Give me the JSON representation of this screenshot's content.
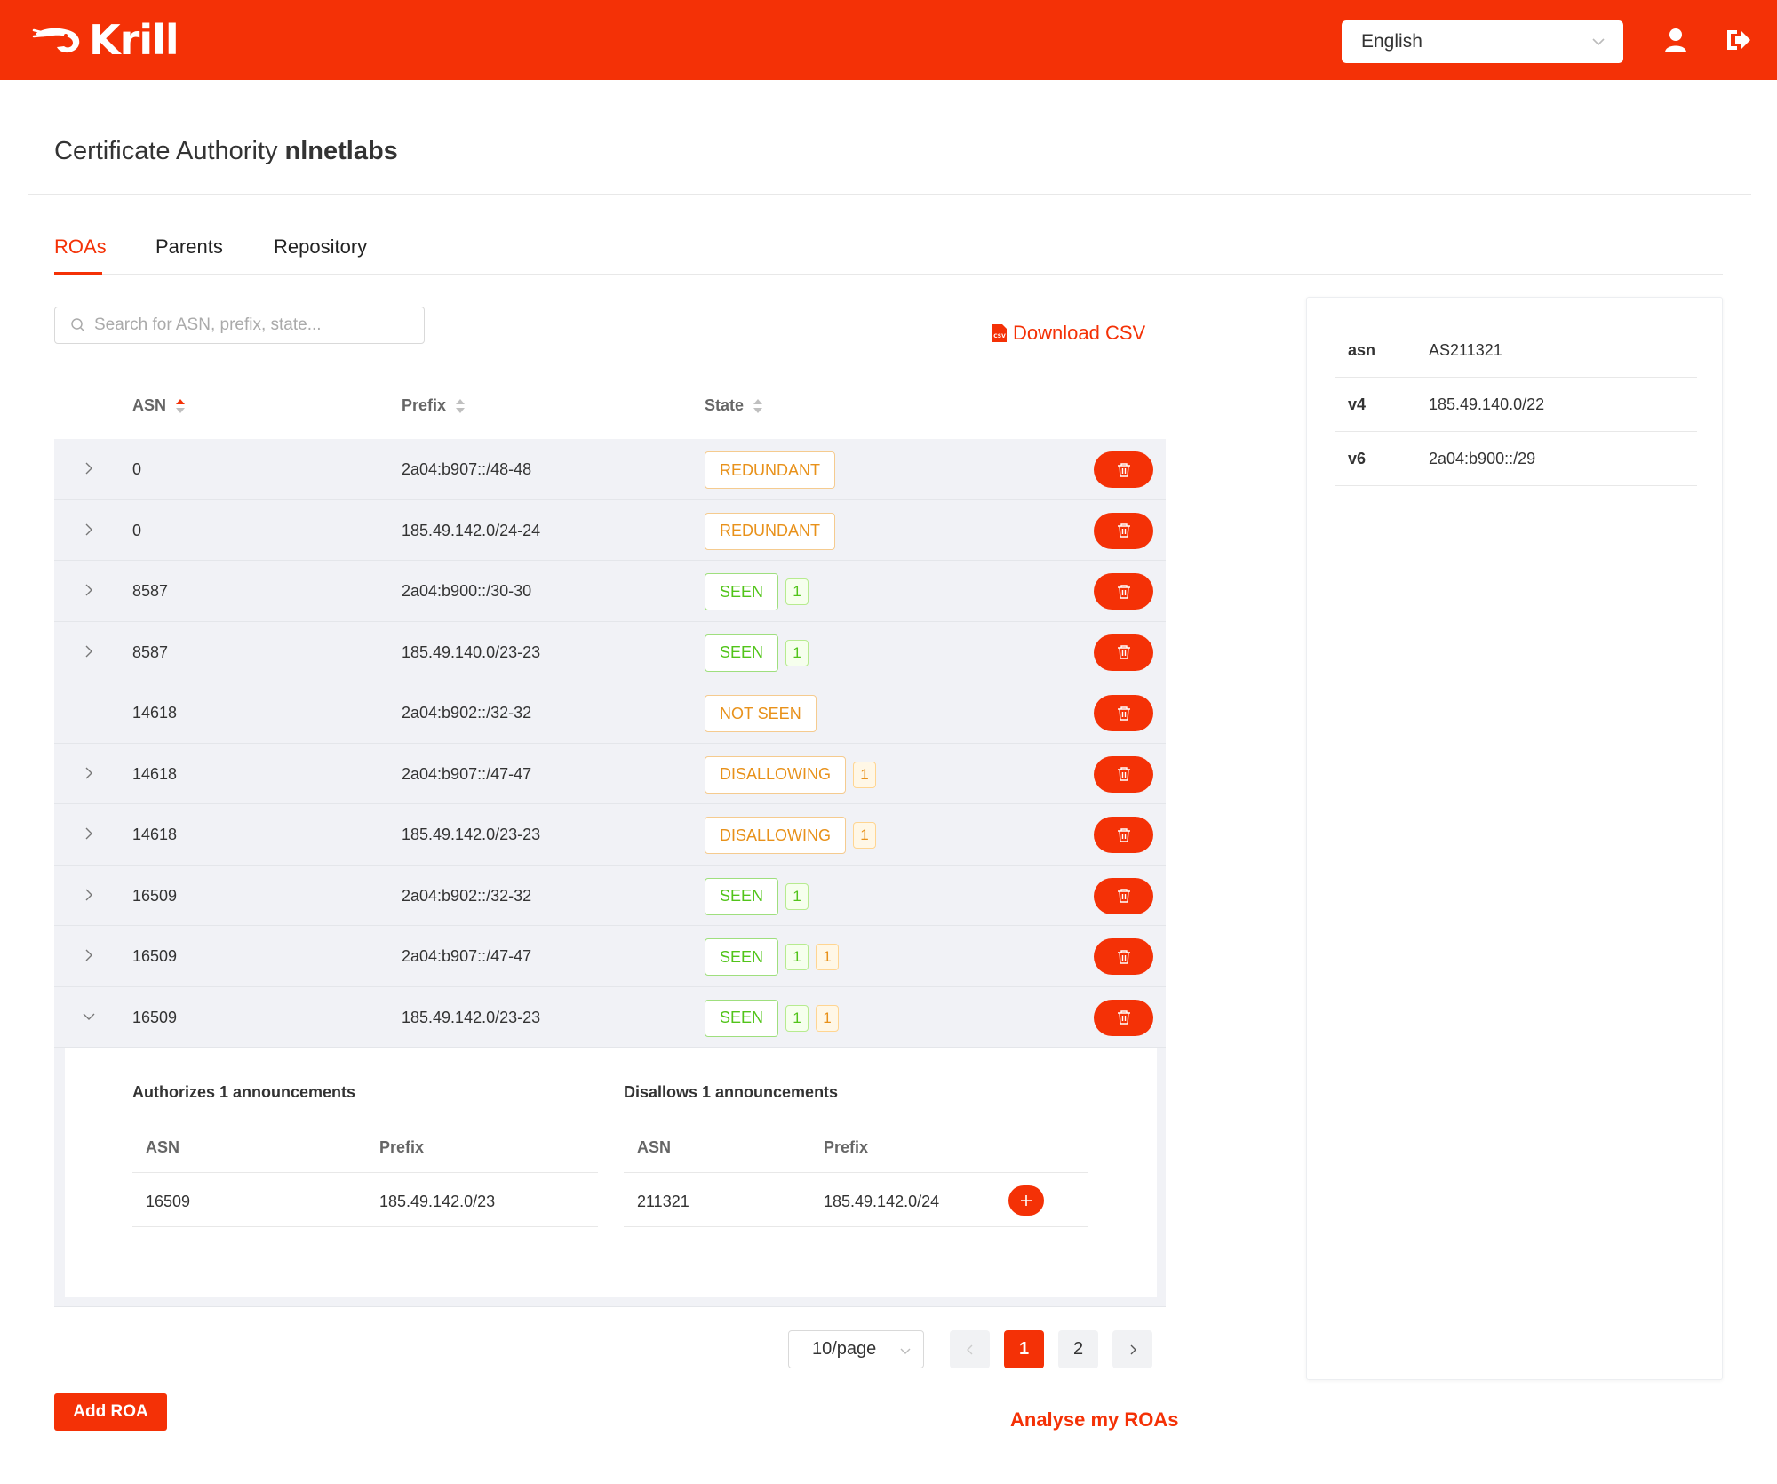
{
  "app": {
    "name": "Krill",
    "brand_color": "#f43106"
  },
  "header": {
    "language": "English",
    "icons": [
      "user-icon",
      "logout-icon"
    ]
  },
  "page": {
    "title_prefix": "Certificate Authority",
    "title_ca": "nlnetlabs"
  },
  "tabs": [
    {
      "label": "ROAs",
      "active": true
    },
    {
      "label": "Parents",
      "active": false
    },
    {
      "label": "Repository",
      "active": false
    }
  ],
  "search": {
    "placeholder": "Search for ASN, prefix, state..."
  },
  "download_csv": "Download CSV",
  "table": {
    "headers": {
      "asn": "ASN",
      "prefix": "Prefix",
      "state": "State"
    },
    "rows": [
      {
        "asn": "0",
        "prefix": "2a04:b907::/48-48",
        "state": "REDUNDANT",
        "expand": "collapsed"
      },
      {
        "asn": "0",
        "prefix": "185.49.142.0/24-24",
        "state": "REDUNDANT",
        "expand": "collapsed"
      },
      {
        "asn": "8587",
        "prefix": "2a04:b900::/30-30",
        "state": "SEEN",
        "count1": "1",
        "expand": "collapsed"
      },
      {
        "asn": "8587",
        "prefix": "185.49.140.0/23-23",
        "state": "SEEN",
        "count1": "1",
        "expand": "collapsed"
      },
      {
        "asn": "14618",
        "prefix": "2a04:b902::/32-32",
        "state": "NOT SEEN",
        "expand": "none"
      },
      {
        "asn": "14618",
        "prefix": "2a04:b907::/47-47",
        "state": "DISALLOWING",
        "count1": "1",
        "expand": "collapsed"
      },
      {
        "asn": "14618",
        "prefix": "185.49.142.0/23-23",
        "state": "DISALLOWING",
        "count1": "1",
        "expand": "collapsed"
      },
      {
        "asn": "16509",
        "prefix": "2a04:b902::/32-32",
        "state": "SEEN",
        "count1": "1",
        "expand": "collapsed"
      },
      {
        "asn": "16509",
        "prefix": "2a04:b907::/47-47",
        "state": "SEEN",
        "count1": "1",
        "count2": "1",
        "expand": "collapsed"
      },
      {
        "asn": "16509",
        "prefix": "185.49.142.0/23-23",
        "state": "SEEN",
        "count1": "1",
        "count2": "1",
        "expand": "expanded"
      }
    ],
    "expanded": {
      "authorizes_title": "Authorizes 1 announcements",
      "disallows_title": "Disallows 1 announcements",
      "col_asn": "ASN",
      "col_prefix": "Prefix",
      "authorizes": [
        {
          "asn": "16509",
          "prefix": "185.49.142.0/23"
        }
      ],
      "disallows": [
        {
          "asn": "211321",
          "prefix": "185.49.142.0/24"
        }
      ]
    }
  },
  "pagination": {
    "page_size": "10/page",
    "pages": [
      "1",
      "2"
    ],
    "current": "1"
  },
  "buttons": {
    "add_roa": "Add ROA",
    "analyse": "Analyse my ROAs"
  },
  "side_panel": [
    {
      "key": "asn",
      "value": "AS211321"
    },
    {
      "key": "v4",
      "value": "185.49.140.0/22"
    },
    {
      "key": "v6",
      "value": "2a04:b900::/29"
    }
  ]
}
